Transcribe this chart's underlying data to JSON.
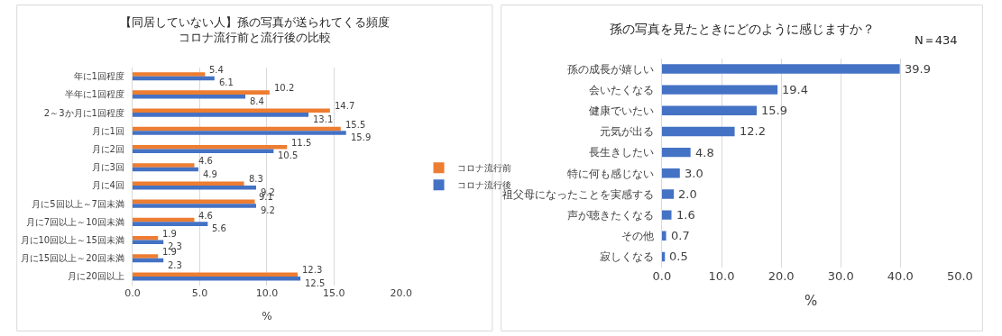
{
  "chart_data": [
    {
      "type": "bar",
      "orientation": "horizontal",
      "title": "【同居していない人】孫の写真が送られてくる頻度",
      "subtitle": "コロナ流行前と流行後の比較",
      "xlabel": "%",
      "categories": [
        "年に1回程度",
        "半年に1回程度",
        "2～3か月に1回程度",
        "月に1回",
        "月に2回",
        "月に3回",
        "月に4回",
        "月に5回以上～7回未満",
        "月に7回以上～10回未満",
        "月に10回以上～15回未満",
        "月に15回以上～20回未満",
        "月に20回以上"
      ],
      "series": [
        {
          "name": "コロナ流行前",
          "color": "#ed7d31",
          "values": [
            5.4,
            10.2,
            14.7,
            15.5,
            11.5,
            4.6,
            8.3,
            9.1,
            4.6,
            1.9,
            1.9,
            12.3
          ]
        },
        {
          "name": "コロナ流行後",
          "color": "#4472c4",
          "values": [
            6.1,
            8.4,
            13.1,
            15.9,
            10.5,
            4.9,
            9.2,
            9.2,
            5.6,
            2.3,
            2.3,
            12.5
          ]
        }
      ],
      "xlim": [
        0,
        20
      ],
      "xticks": [
        {
          "value": 0,
          "label": "0.0"
        },
        {
          "value": 5,
          "label": "5.0"
        },
        {
          "value": 10,
          "label": "10.0"
        },
        {
          "value": 15,
          "label": "15.0"
        },
        {
          "value": 20,
          "label": "20.0"
        }
      ],
      "grid": "x",
      "legend": "right",
      "data_labels": true
    },
    {
      "type": "bar",
      "orientation": "horizontal",
      "title": "孫の写真を見たときにどのように感じますか？",
      "xlabel": "%",
      "annotations": [
        "N＝434"
      ],
      "categories": [
        "孫の成長が嬉しい",
        "会いたくなる",
        "健康でいたい",
        "元気が出る",
        "長生きしたい",
        "特に何も感じない",
        "祖父母になったことを実感する",
        "声が聴きたくなる",
        "その他",
        "寂しくなる"
      ],
      "series": [
        {
          "color": "#4472c4",
          "values": [
            39.9,
            19.4,
            15.9,
            12.2,
            4.8,
            3.0,
            2.0,
            1.6,
            0.7,
            0.5
          ],
          "value_labels": [
            "39.9",
            "19.4",
            "15.9",
            "12.2",
            "4.8",
            "3.0",
            "2.0",
            "1.6",
            "0.7",
            "0.5"
          ]
        }
      ],
      "xlim": [
        0,
        50
      ],
      "xticks": [
        {
          "value": 0,
          "label": "0.0"
        },
        {
          "value": 10,
          "label": "10.0"
        },
        {
          "value": 20,
          "label": "20.0"
        },
        {
          "value": 30,
          "label": "30.0"
        },
        {
          "value": 40,
          "label": "40.0"
        },
        {
          "value": 50,
          "label": "50.0"
        }
      ],
      "grid": "x"
    }
  ]
}
